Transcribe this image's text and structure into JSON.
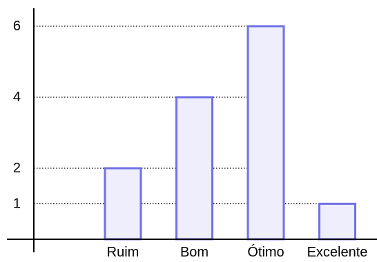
{
  "chart_data": {
    "type": "bar",
    "title": "",
    "xlabel": "",
    "ylabel": "",
    "categories": [
      "Ruim",
      "Bom",
      "Ótimo",
      "Excelente"
    ],
    "values": [
      2,
      4,
      6,
      1
    ],
    "yticks": [
      "1",
      "2",
      "4",
      "6"
    ],
    "ylim": [
      0,
      6.6
    ],
    "grid": "dotted guide lines at labeled ticks",
    "legend": "none",
    "colors": {
      "bar_fill": "#eeeefc",
      "bar_stroke": "#7070e6",
      "axis": "#000000",
      "guide": "#000000"
    }
  }
}
